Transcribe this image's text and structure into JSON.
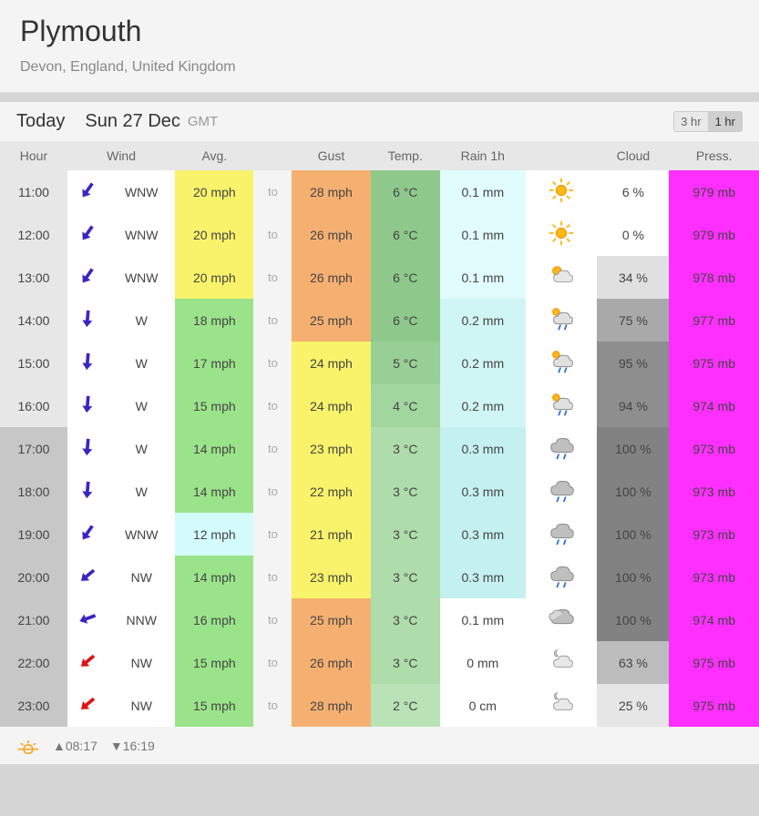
{
  "header": {
    "title": "Plymouth",
    "subtitle": "Devon, England, United Kingdom"
  },
  "day": {
    "today_label": "Today",
    "date_label": "Sun 27 Dec",
    "tz_label": "GMT",
    "interval_3hr": "3 hr",
    "interval_1hr": "1 hr"
  },
  "columns": {
    "hour": "Hour",
    "wind": "Wind",
    "avg": "Avg.",
    "gust": "Gust",
    "temp": "Temp.",
    "rain": "Rain 1h",
    "cloud": "Cloud",
    "press": "Press."
  },
  "to_label": "to",
  "sun": {
    "rise": "08:17",
    "set": "16:19"
  },
  "row_style": {
    "hour_bg_day": "#e7e7e7",
    "hour_bg_night": "#c7c7c7",
    "to_bg": "#f4f4f4"
  },
  "rows": [
    {
      "hour": "11:00",
      "night": false,
      "arrow_color": "#3a25c4",
      "arrow_rot": 125,
      "wind_dir": "WNW",
      "avg": "20 mph",
      "avg_bg": "#f8f36a",
      "gust": "28 mph",
      "gust_bg": "#f5b071",
      "temp": "6 °C",
      "temp_bg": "#8ec98b",
      "rain": "0.1 mm",
      "rain_bg": "#e1fcfc",
      "wx": "sun",
      "cloud": "6 %",
      "cloud_bg": "#ffffff",
      "press": "979 mb",
      "press_bg": "#ff2fff"
    },
    {
      "hour": "12:00",
      "night": false,
      "arrow_color": "#3a25c4",
      "arrow_rot": 125,
      "wind_dir": "WNW",
      "avg": "20 mph",
      "avg_bg": "#f8f36a",
      "gust": "26 mph",
      "gust_bg": "#f5b071",
      "temp": "6 °C",
      "temp_bg": "#8ec98b",
      "rain": "0.1 mm",
      "rain_bg": "#e1fcfc",
      "wx": "sun",
      "cloud": "0 %",
      "cloud_bg": "#ffffff",
      "press": "979 mb",
      "press_bg": "#ff2fff"
    },
    {
      "hour": "13:00",
      "night": false,
      "arrow_color": "#3a25c4",
      "arrow_rot": 125,
      "wind_dir": "WNW",
      "avg": "20 mph",
      "avg_bg": "#f8f36a",
      "gust": "26 mph",
      "gust_bg": "#f5b071",
      "temp": "6 °C",
      "temp_bg": "#8ec98b",
      "rain": "0.1 mm",
      "rain_bg": "#e1fcfc",
      "wx": "partly",
      "cloud": "34 %",
      "cloud_bg": "#e0e0e0",
      "press": "978 mb",
      "press_bg": "#ff2fff"
    },
    {
      "hour": "14:00",
      "night": false,
      "arrow_color": "#3a25c4",
      "arrow_rot": 95,
      "wind_dir": "W",
      "avg": "18 mph",
      "avg_bg": "#9be38a",
      "gust": "25 mph",
      "gust_bg": "#f5b071",
      "temp": "6 °C",
      "temp_bg": "#8ec98b",
      "rain": "0.2 mm",
      "rain_bg": "#d0f5f5",
      "wx": "shower-sun",
      "cloud": "75 %",
      "cloud_bg": "#a9a9a9",
      "press": "977 mb",
      "press_bg": "#ff2fff"
    },
    {
      "hour": "15:00",
      "night": false,
      "arrow_color": "#3a25c4",
      "arrow_rot": 95,
      "wind_dir": "W",
      "avg": "17 mph",
      "avg_bg": "#9be38a",
      "gust": "24 mph",
      "gust_bg": "#f8f36a",
      "temp": "5 °C",
      "temp_bg": "#97cf94",
      "rain": "0.2 mm",
      "rain_bg": "#d0f5f5",
      "wx": "shower-sun",
      "cloud": "95 %",
      "cloud_bg": "#8e8e8e",
      "press": "975 mb",
      "press_bg": "#ff2fff"
    },
    {
      "hour": "16:00",
      "night": false,
      "arrow_color": "#3a25c4",
      "arrow_rot": 95,
      "wind_dir": "W",
      "avg": "15 mph",
      "avg_bg": "#9be38a",
      "gust": "24 mph",
      "gust_bg": "#f8f36a",
      "temp": "4 °C",
      "temp_bg": "#a2d69f",
      "rain": "0.2 mm",
      "rain_bg": "#d0f5f5",
      "wx": "shower-sun",
      "cloud": "94 %",
      "cloud_bg": "#8e8e8e",
      "press": "974 mb",
      "press_bg": "#ff2fff"
    },
    {
      "hour": "17:00",
      "night": true,
      "arrow_color": "#3a25c4",
      "arrow_rot": 95,
      "wind_dir": "W",
      "avg": "14 mph",
      "avg_bg": "#9be38a",
      "gust": "23 mph",
      "gust_bg": "#f8f36a",
      "temp": "3 °C",
      "temp_bg": "#aedcab",
      "rain": "0.3 mm",
      "rain_bg": "#c4f0f0",
      "wx": "shower",
      "cloud": "100 %",
      "cloud_bg": "#828282",
      "press": "973 mb",
      "press_bg": "#ff2fff"
    },
    {
      "hour": "18:00",
      "night": true,
      "arrow_color": "#3a25c4",
      "arrow_rot": 95,
      "wind_dir": "W",
      "avg": "14 mph",
      "avg_bg": "#9be38a",
      "gust": "22 mph",
      "gust_bg": "#f8f36a",
      "temp": "3 °C",
      "temp_bg": "#aedcab",
      "rain": "0.3 mm",
      "rain_bg": "#c4f0f0",
      "wx": "shower",
      "cloud": "100 %",
      "cloud_bg": "#828282",
      "press": "973 mb",
      "press_bg": "#ff2fff"
    },
    {
      "hour": "19:00",
      "night": true,
      "arrow_color": "#3a25c4",
      "arrow_rot": 125,
      "wind_dir": "WNW",
      "avg": "12 mph",
      "avg_bg": "#d4fcfc",
      "gust": "21 mph",
      "gust_bg": "#f8f36a",
      "temp": "3 °C",
      "temp_bg": "#aedcab",
      "rain": "0.3 mm",
      "rain_bg": "#c4f0f0",
      "wx": "shower",
      "cloud": "100 %",
      "cloud_bg": "#828282",
      "press": "973 mb",
      "press_bg": "#ff2fff"
    },
    {
      "hour": "20:00",
      "night": true,
      "arrow_color": "#3a25c4",
      "arrow_rot": 140,
      "wind_dir": "NW",
      "avg": "14 mph",
      "avg_bg": "#9be38a",
      "gust": "23 mph",
      "gust_bg": "#f8f36a",
      "temp": "3 °C",
      "temp_bg": "#aedcab",
      "rain": "0.3 mm",
      "rain_bg": "#c4f0f0",
      "wx": "shower",
      "cloud": "100 %",
      "cloud_bg": "#828282",
      "press": "973 mb",
      "press_bg": "#ff2fff"
    },
    {
      "hour": "21:00",
      "night": true,
      "arrow_color": "#3a25c4",
      "arrow_rot": 160,
      "wind_dir": "NNW",
      "avg": "16 mph",
      "avg_bg": "#9be38a",
      "gust": "25 mph",
      "gust_bg": "#f5b071",
      "temp": "3 °C",
      "temp_bg": "#aedcab",
      "rain": "0.1 mm",
      "rain_bg": "#ffffff",
      "wx": "cloudy",
      "cloud": "100 %",
      "cloud_bg": "#828282",
      "press": "974 mb",
      "press_bg": "#ff2fff"
    },
    {
      "hour": "22:00",
      "night": true,
      "arrow_color": "#e01212",
      "arrow_rot": 140,
      "wind_dir": "NW",
      "avg": "15 mph",
      "avg_bg": "#9be38a",
      "gust": "26 mph",
      "gust_bg": "#f5b071",
      "temp": "3 °C",
      "temp_bg": "#aedcab",
      "rain": "0 mm",
      "rain_bg": "#ffffff",
      "wx": "cloudy-night",
      "cloud": "63 %",
      "cloud_bg": "#bcbcbc",
      "press": "975 mb",
      "press_bg": "#ff2fff"
    },
    {
      "hour": "23:00",
      "night": true,
      "arrow_color": "#e01212",
      "arrow_rot": 140,
      "wind_dir": "NW",
      "avg": "15 mph",
      "avg_bg": "#9be38a",
      "gust": "28 mph",
      "gust_bg": "#f5b071",
      "temp": "2 °C",
      "temp_bg": "#b9e3b6",
      "rain": "0 cm",
      "rain_bg": "#ffffff",
      "wx": "cloudy-night",
      "cloud": "25 %",
      "cloud_bg": "#e6e6e6",
      "press": "975 mb",
      "press_bg": "#ff2fff"
    }
  ]
}
